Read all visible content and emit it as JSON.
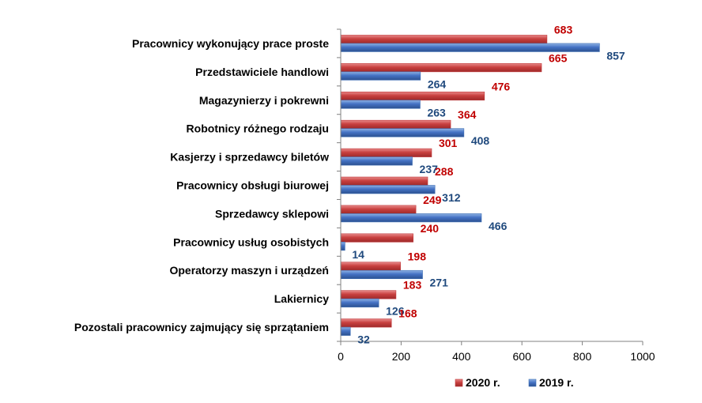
{
  "chart_data": {
    "type": "bar",
    "orientation": "horizontal",
    "categories": [
      "Pracownicy wykonujący prace proste",
      "Przedstawiciele handlowi",
      "Magazynierzy i pokrewni",
      "Robotnicy różnego rodzaju",
      "Kasjerzy i sprzedawcy biletów",
      "Pracownicy obsługi biurowej",
      "Sprzedawcy sklepowi",
      "Pracownicy usług osobistych",
      "Operatorzy maszyn i urządzeń",
      "Lakiernicy",
      "Pozostali pracownicy zajmujący się sprzątaniem"
    ],
    "series": [
      {
        "name": "2020 r.",
        "color": "#C0393B",
        "label_color": "#C00000",
        "values": [
          683,
          665,
          476,
          364,
          301,
          288,
          249,
          240,
          198,
          183,
          168
        ]
      },
      {
        "name": "2019 r.",
        "color": "#3F6FB5",
        "label_color": "#1F497D",
        "values": [
          857,
          264,
          263,
          408,
          237,
          312,
          466,
          14,
          271,
          126,
          32
        ]
      }
    ],
    "xlim": [
      0,
      1000
    ],
    "x_ticks": [
      "0",
      "200",
      "400",
      "600",
      "800",
      "1000"
    ],
    "grid": false,
    "legend_position": "bottom"
  }
}
